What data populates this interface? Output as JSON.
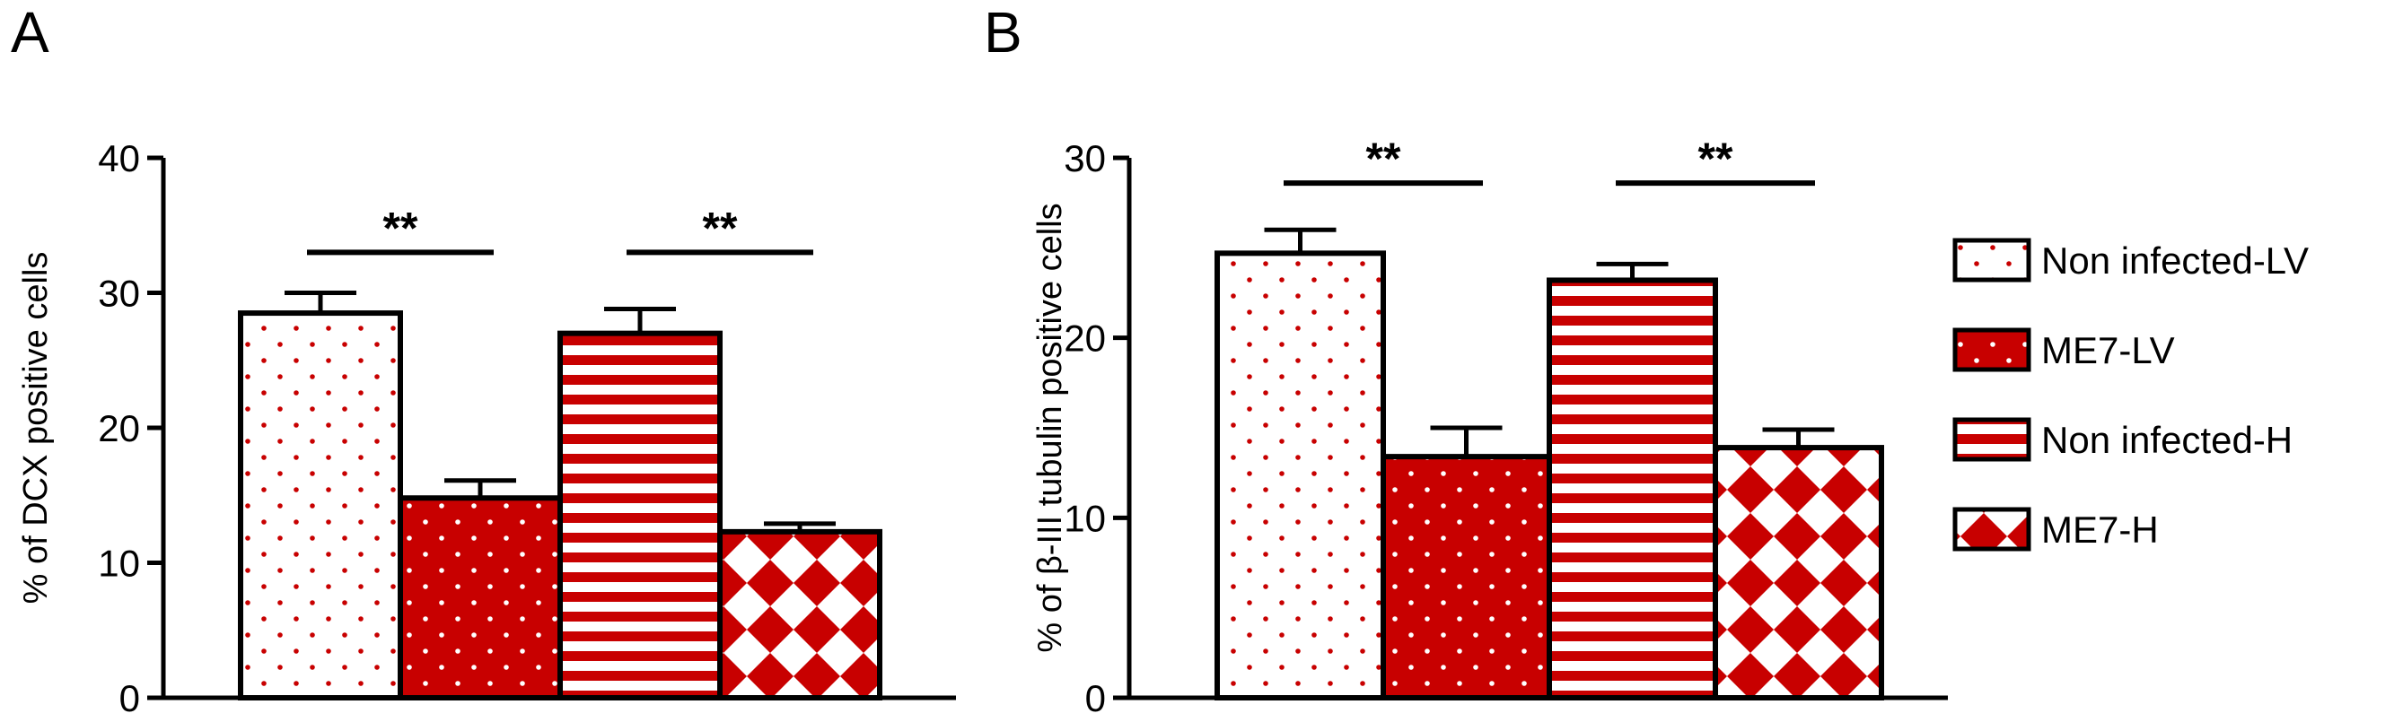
{
  "colors": {
    "red": "#c80000",
    "white": "#ffffff",
    "black": "#000000"
  },
  "legend": [
    {
      "label": "Non infected-LV",
      "pattern": "dots-white"
    },
    {
      "label": "ME7-LV",
      "pattern": "dots-red"
    },
    {
      "label": "Non infected-H",
      "pattern": "stripes"
    },
    {
      "label": "ME7-H",
      "pattern": "diamonds"
    }
  ],
  "chart_data": [
    {
      "type": "bar",
      "panel_label": "A",
      "ylabel": "% of DCX positive cells",
      "ylim": [
        0,
        40
      ],
      "yticks": [
        0,
        10,
        20,
        30,
        40
      ],
      "categories": [
        "Non infected-LV",
        "ME7-LV",
        "Non infected-H",
        "ME7-H"
      ],
      "values": [
        28.5,
        14.8,
        27.0,
        12.3
      ],
      "errors": [
        1.5,
        1.3,
        1.8,
        0.6
      ],
      "significance": [
        {
          "groups": [
            0,
            1
          ],
          "label": "**",
          "level": 33
        },
        {
          "groups": [
            2,
            3
          ],
          "label": "**",
          "level": 33
        }
      ]
    },
    {
      "type": "bar",
      "panel_label": "B",
      "ylabel": "% of β-III tubulin positive cells",
      "ylim": [
        0,
        30
      ],
      "yticks": [
        0,
        10,
        20,
        30
      ],
      "categories": [
        "Non infected-LV",
        "ME7-LV",
        "Non infected-H",
        "ME7-H"
      ],
      "values": [
        24.7,
        13.4,
        23.2,
        13.9
      ],
      "errors": [
        1.3,
        1.6,
        0.9,
        1.0
      ],
      "significance": [
        {
          "groups": [
            0,
            1
          ],
          "label": "**",
          "level": 28.6
        },
        {
          "groups": [
            2,
            3
          ],
          "label": "**",
          "level": 28.6
        }
      ]
    }
  ]
}
